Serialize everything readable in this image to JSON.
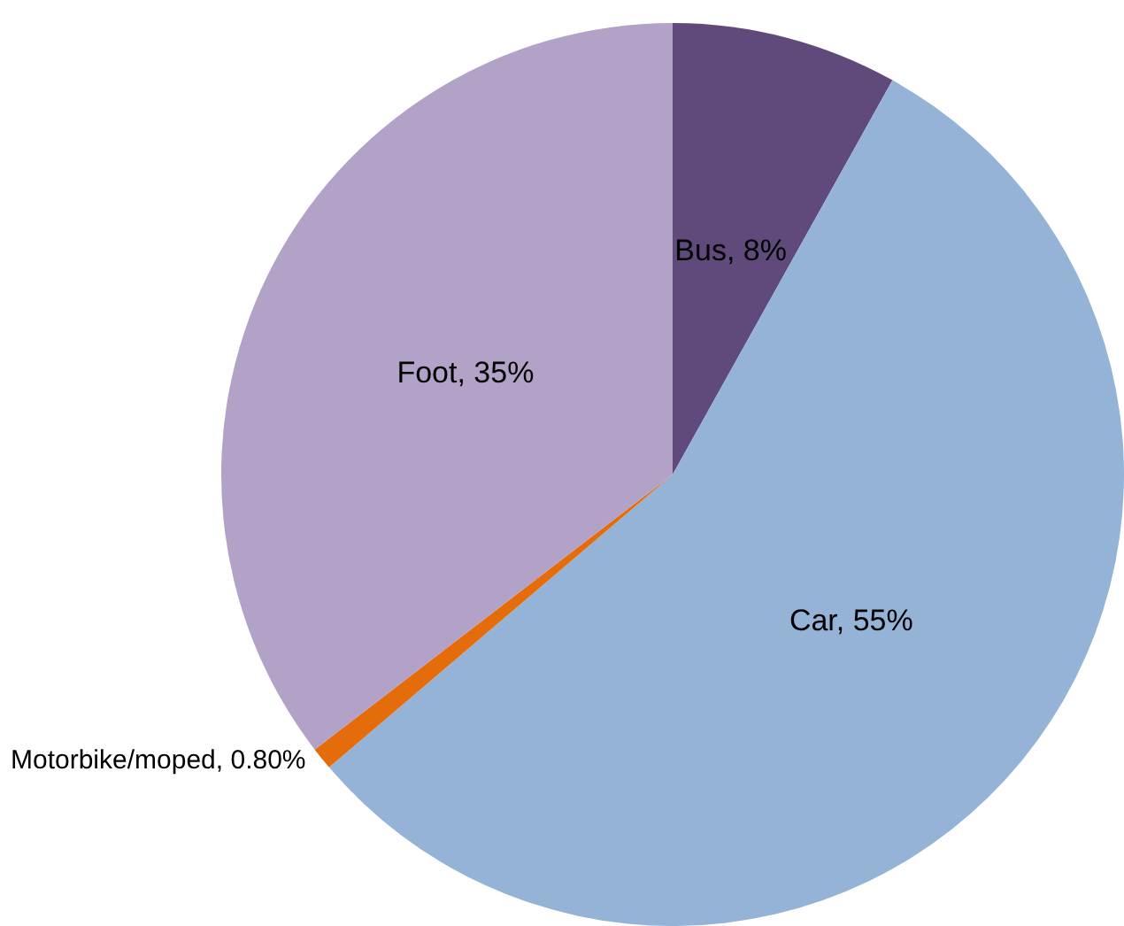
{
  "chart_data": {
    "type": "pie",
    "categories": [
      "Bus",
      "Car",
      "Motorbike/moped",
      "Foot"
    ],
    "values": [
      8,
      55,
      0.8,
      35
    ],
    "value_labels": [
      "8%",
      "55%",
      "0.80%",
      "35%"
    ],
    "colors": [
      "#604a7b",
      "#95b3d7",
      "#e46c0a",
      "#b3a2c7"
    ],
    "legend": false
  }
}
